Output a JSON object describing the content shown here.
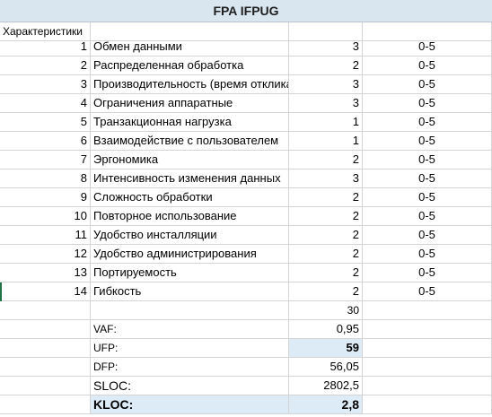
{
  "title": "FPA IFPUG",
  "header_label": "Характеристики",
  "characteristics": [
    {
      "n": "1",
      "name": "Обмен данными",
      "value": "3",
      "range": "0-5"
    },
    {
      "n": "2",
      "name": "Распределенная обработка",
      "value": "2",
      "range": "0-5"
    },
    {
      "n": "3",
      "name": "Производительность (время отклика)",
      "value": "3",
      "range": "0-5"
    },
    {
      "n": "4",
      "name": "Ограничения аппаратные",
      "value": "3",
      "range": "0-5"
    },
    {
      "n": "5",
      "name": "Транзакционная нагрузка",
      "value": "1",
      "range": "0-5"
    },
    {
      "n": "6",
      "name": "Взаимодействие с пользователем",
      "value": "1",
      "range": "0-5"
    },
    {
      "n": "7",
      "name": "Эргономика",
      "value": "2",
      "range": "0-5"
    },
    {
      "n": "8",
      "name": "Интенсивность изменения данных",
      "value": "3",
      "range": "0-5"
    },
    {
      "n": "9",
      "name": "Сложность обработки",
      "value": "2",
      "range": "0-5"
    },
    {
      "n": "10",
      "name": "Повторное использование",
      "value": "2",
      "range": "0-5"
    },
    {
      "n": "11",
      "name": "Удобство инсталляции",
      "value": "2",
      "range": "0-5"
    },
    {
      "n": "12",
      "name": "Удобство администрирования",
      "value": "2",
      "range": "0-5"
    },
    {
      "n": "13",
      "name": "Портируемость",
      "value": "2",
      "range": "0-5"
    },
    {
      "n": "14",
      "name": "Гибкость",
      "value": "2",
      "range": "0-5"
    }
  ],
  "sum": "30",
  "metrics": [
    {
      "label": "VAF:",
      "value": "0,95"
    },
    {
      "label": "UFP:",
      "value": "59"
    },
    {
      "label": "DFP:",
      "value": "56,05"
    },
    {
      "label": "SLOC:",
      "value": "2802,5"
    },
    {
      "label": "KLOC:",
      "value": "2,8"
    }
  ]
}
